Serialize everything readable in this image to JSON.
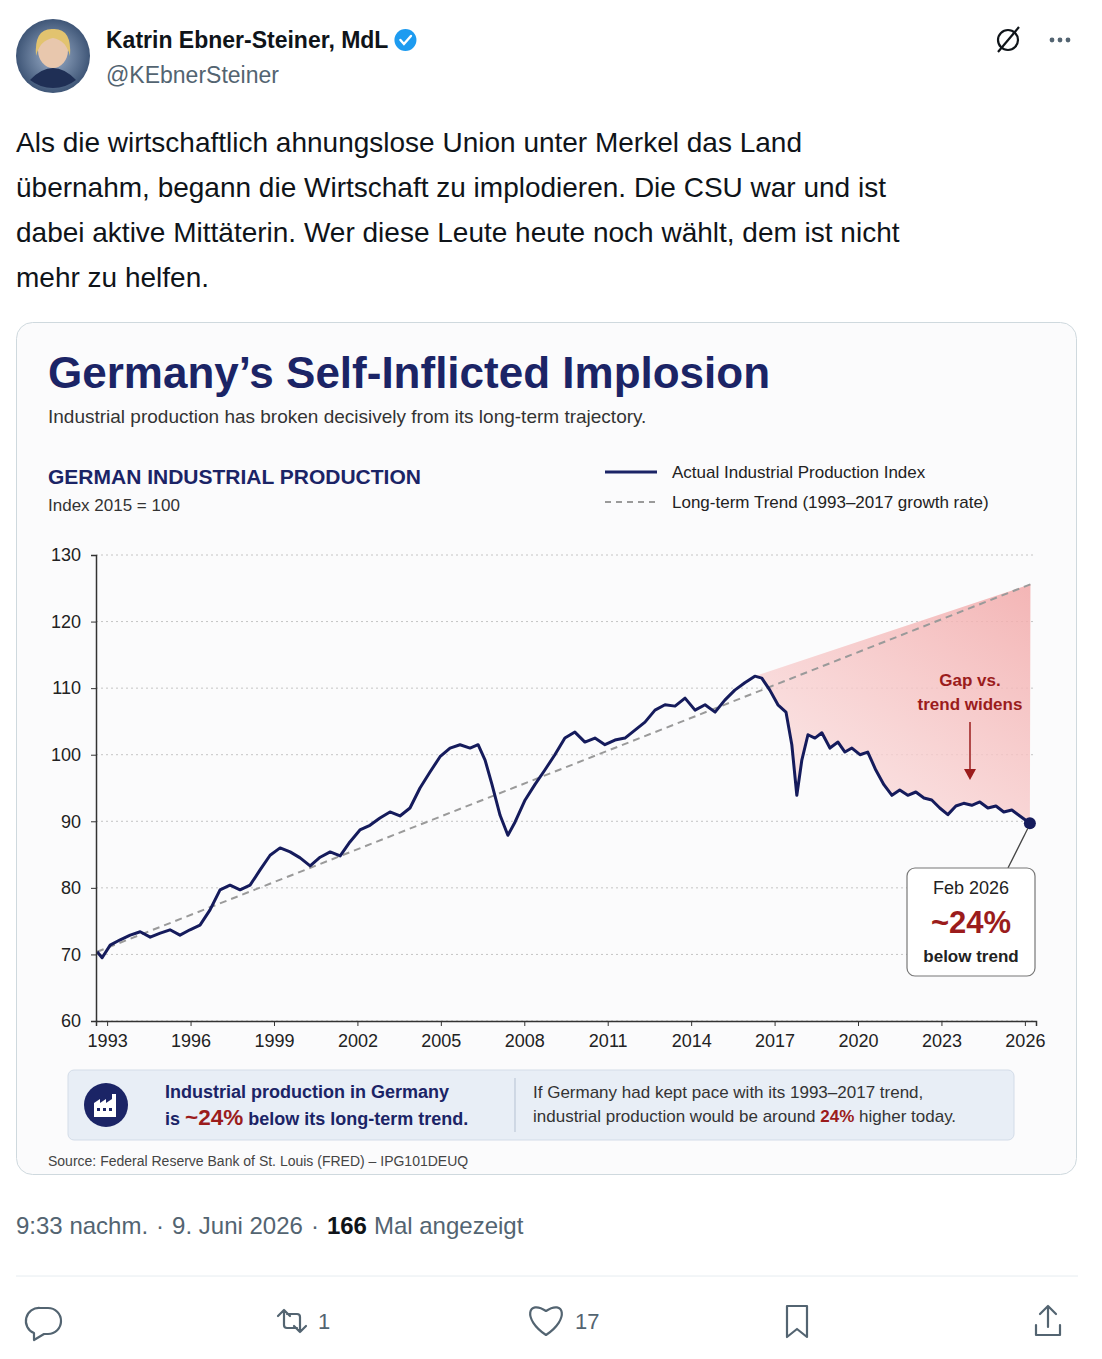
{
  "chart_data": {
    "type": "line",
    "title": "Germany’s Self-Inflicted Implosion",
    "subtitle": "Industrial production has broken decisively from its long-term trajectory.",
    "panel_title": "GERMAN INDUSTRIAL PRODUCTION",
    "ylabel": "Index 2015 = 100",
    "xlim": [
      1992.6,
      2026.4
    ],
    "ylim": [
      60,
      130
    ],
    "xticks": [
      1993,
      1996,
      1999,
      2002,
      2005,
      2008,
      2011,
      2014,
      2017,
      2020,
      2023,
      2026
    ],
    "yticks": [
      60,
      70,
      80,
      90,
      100,
      110,
      120,
      130
    ],
    "grid": true,
    "legend": "top-right",
    "series": [
      {
        "name": "Actual Industrial Production Index",
        "color": "#151b5c",
        "line_style": "solid",
        "marker": "last",
        "x": [
          1992.64,
          1992.82,
          1993.11,
          1993.47,
          1993.83,
          1994.19,
          1994.55,
          1994.91,
          1995.26,
          1995.62,
          1995.98,
          1996.34,
          1996.7,
          1997.06,
          1997.42,
          1997.78,
          1998.14,
          1998.5,
          1998.86,
          1999.22,
          1999.58,
          1999.94,
          2000.3,
          2000.66,
          2001.02,
          2001.38,
          2001.73,
          2002.09,
          2002.45,
          2002.81,
          2003.17,
          2003.53,
          2003.89,
          2004.25,
          2004.61,
          2004.97,
          2005.33,
          2005.69,
          2006.05,
          2006.34,
          2006.59,
          2006.84,
          2007.13,
          2007.41,
          2007.67,
          2008.03,
          2008.38,
          2008.74,
          2009.1,
          2009.46,
          2009.82,
          2010.18,
          2010.54,
          2010.9,
          2011.26,
          2011.62,
          2011.98,
          2012.34,
          2012.7,
          2013.06,
          2013.42,
          2013.78,
          2014.14,
          2014.5,
          2014.86,
          2015.21,
          2015.57,
          2015.93,
          2016.29,
          2016.54,
          2016.83,
          2017.12,
          2017.41,
          2017.62,
          2017.8,
          2017.98,
          2018.2,
          2018.45,
          2018.7,
          2018.99,
          2019.28,
          2019.53,
          2019.78,
          2020.07,
          2020.35,
          2020.64,
          2020.93,
          2021.22,
          2021.5,
          2021.79,
          2022.08,
          2022.37,
          2022.65,
          2022.94,
          2023.23,
          2023.52,
          2023.8,
          2024.09,
          2024.38,
          2024.67,
          2024.96,
          2025.24,
          2025.53,
          2025.82,
          2026.18
        ],
        "values": [
          70.4,
          69.5,
          71.4,
          72.2,
          72.9,
          73.4,
          72.6,
          73.2,
          73.7,
          72.9,
          73.7,
          74.4,
          76.7,
          79.7,
          80.4,
          79.7,
          80.4,
          82.7,
          84.9,
          86.0,
          85.4,
          84.5,
          83.3,
          84.6,
          85.4,
          84.8,
          86.9,
          88.7,
          89.4,
          90.5,
          91.4,
          90.8,
          92.0,
          95.0,
          97.4,
          99.7,
          101.0,
          101.5,
          101.0,
          101.5,
          99.2,
          95.5,
          90.9,
          87.9,
          89.9,
          93.2,
          95.5,
          97.7,
          100.0,
          102.5,
          103.4,
          101.9,
          102.5,
          101.5,
          102.2,
          102.5,
          103.7,
          104.9,
          106.7,
          107.5,
          107.3,
          108.5,
          106.7,
          107.5,
          106.4,
          108.2,
          109.7,
          110.8,
          111.8,
          111.5,
          109.7,
          107.5,
          106.4,
          101.5,
          93.9,
          99.2,
          103.0,
          102.5,
          103.3,
          101.0,
          101.9,
          100.4,
          101.0,
          100.0,
          100.4,
          97.7,
          95.5,
          93.9,
          94.7,
          93.9,
          94.4,
          93.5,
          93.2,
          92.0,
          91.0,
          92.3,
          92.7,
          92.4,
          92.9,
          92.0,
          92.3,
          91.4,
          91.7,
          90.8,
          89.7
        ]
      },
      {
        "name": "Long-term Trend (1993–2017 growth rate)",
        "color": "#9a9a9a",
        "line_style": "dashed",
        "x": [
          1992.64,
          2026.2
        ],
        "values": [
          70.4,
          125.6
        ]
      }
    ],
    "annotations": [
      {
        "lines": [
          "Gap vs.",
          "trend widens"
        ]
      },
      {
        "lines": [
          "Feb 2026",
          "~24%",
          "below trend"
        ]
      }
    ],
    "banner": {
      "left": {
        "line1": "Industrial production in Germany",
        "line2": {
          "before": "is ",
          "highlight": "~24%",
          "after": " below its long-term trend."
        }
      },
      "right": {
        "line1": "If Germany had kept pace with its 1993–2017 trend,",
        "line2": {
          "before": "industrial production would be around ",
          "highlight": "24%",
          "after": " higher today."
        }
      }
    },
    "source": "Source: Federal Reserve Bank of St. Louis (FRED) – IPG101DEUQ"
  },
  "post": {
    "author": {
      "name": "Katrin Ebner-Steiner, MdL",
      "handle": "@KEbnerSteiner"
    },
    "text": [
      "Als die wirtschaftlich ahnungslose Union unter Merkel das Land",
      "übernahm, begann die Wirtschaft zu implodieren. Die CSU war und ist",
      "dabei aktive Mittäterin. Wer diese Leute heute noch wählt, dem ist nicht",
      "mehr zu helfen."
    ],
    "meta": {
      "time": "9:33 nachm.",
      "separator": "·",
      "date": "9. Juni 2026",
      "views": "166",
      "views_label": "Mal angezeigt"
    },
    "actions": {
      "retweets": "1",
      "likes": "17"
    }
  }
}
